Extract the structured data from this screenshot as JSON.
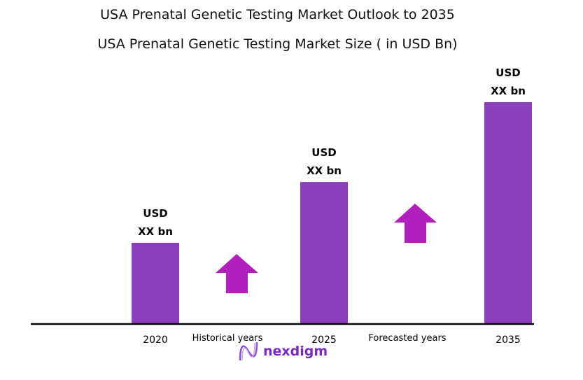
{
  "chart_data": {
    "type": "bar",
    "title": "USA Prenatal  Genetic Testing Market Outlook to 2035",
    "subtitle": "USA Prenatal  Genetic Testing Market Size  ( in USD Bn)",
    "categories": [
      "2020",
      "2025",
      "2035"
    ],
    "values": [
      36.6,
      64,
      100
    ],
    "data_labels": [
      [
        "USD",
        "XX bn"
      ],
      [
        "USD",
        "XX bn"
      ],
      [
        "USD",
        "XX bn"
      ]
    ],
    "annotations": [
      "Historical years",
      "Forecasted years"
    ],
    "xlabel": "",
    "ylabel": "",
    "ylim": [
      0,
      100
    ],
    "grid": false,
    "colors": {
      "bar": "#8A3FBC",
      "arrow": "#B31FBF",
      "axis": "#000000"
    }
  },
  "brand": {
    "name": "nexdigm",
    "color": "#7A2BC4"
  }
}
